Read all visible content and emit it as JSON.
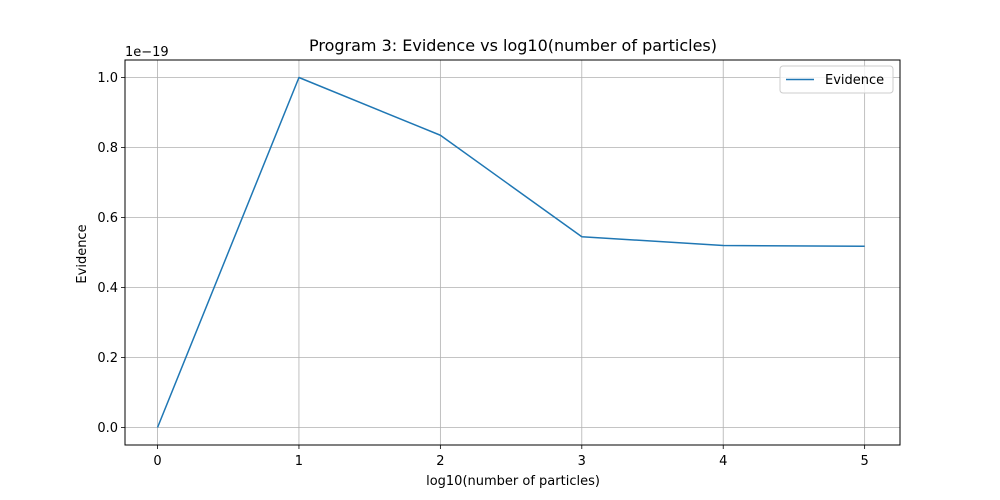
{
  "chart_data": {
    "type": "line",
    "title": "Program 3: Evidence vs log10(number of particles)",
    "xlabel": "log10(number of particles)",
    "ylabel": "Evidence",
    "y_offset_label": "1e−19",
    "x": [
      0,
      1,
      2,
      3,
      4,
      5
    ],
    "xlim": [
      -0.23,
      5.25
    ],
    "ylim": [
      -0.05,
      1.05
    ],
    "xticks": [
      0,
      1,
      2,
      3,
      4,
      5
    ],
    "xtick_labels": [
      "0",
      "1",
      "2",
      "3",
      "4",
      "5"
    ],
    "yticks": [
      0.0,
      0.2,
      0.4,
      0.6,
      0.8,
      1.0
    ],
    "ytick_labels": [
      "0.0",
      "0.2",
      "0.4",
      "0.6",
      "0.8",
      "1.0"
    ],
    "grid": true,
    "legend_position": "top-right",
    "series": [
      {
        "name": "Evidence",
        "color": "#1f77b4",
        "values": [
          0.0,
          1.0,
          0.835,
          0.545,
          0.52,
          0.518
        ]
      }
    ]
  }
}
